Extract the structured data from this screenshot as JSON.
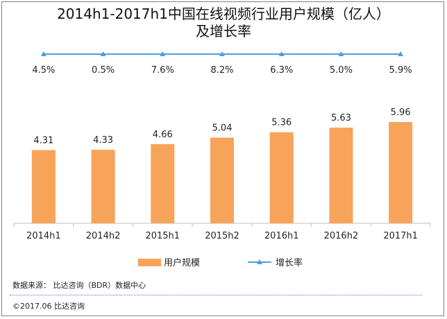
{
  "chart_data": {
    "type": "bar",
    "title_line1": "2014h1-2017h1中国在线视频行业用户规模（亿人）",
    "title_line2": "及增长率",
    "categories": [
      "2014h1",
      "2014h2",
      "2015h1",
      "2015h2",
      "2016h1",
      "2016h2",
      "2017h1"
    ],
    "series": [
      {
        "name": "用户规模",
        "type": "bar",
        "color": "#f8a35a",
        "values": [
          4.31,
          4.33,
          4.66,
          5.04,
          5.36,
          5.63,
          5.96
        ]
      },
      {
        "name": "增长率",
        "type": "line",
        "color": "#4a9fe0",
        "values": [
          4.5,
          0.5,
          7.6,
          8.2,
          6.3,
          5.0,
          5.9
        ],
        "labels": [
          "4.5%",
          "0.5%",
          "7.6%",
          "8.2%",
          "6.3%",
          "5.0%",
          "5.9%"
        ]
      }
    ],
    "legend_position": "bottom",
    "grid": false
  },
  "footer": {
    "source": "数据来源： 比达咨询（BDR）数据中心",
    "copyright": "©2017.06   比达咨询"
  }
}
